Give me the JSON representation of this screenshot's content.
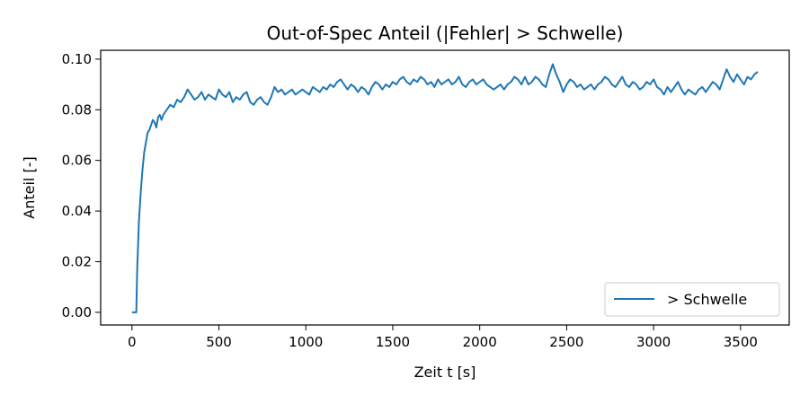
{
  "chart_data": {
    "type": "line",
    "title": "Out-of-Spec Anteil (|Fehler| > Schwelle)",
    "xlabel": "Zeit t [s]",
    "ylabel": "Anteil [-]",
    "xlim": [
      -180,
      3780
    ],
    "ylim": [
      -0.005,
      0.1035
    ],
    "x_ticks": [
      0,
      500,
      1000,
      1500,
      2000,
      2500,
      3000,
      3500
    ],
    "x_tick_labels": [
      "0",
      "500",
      "1000",
      "1500",
      "2000",
      "2500",
      "3000",
      "3500"
    ],
    "y_ticks": [
      0.0,
      0.02,
      0.04,
      0.06,
      0.08,
      0.1
    ],
    "y_tick_labels": [
      "0.00",
      "0.02",
      "0.04",
      "0.06",
      "0.08",
      "0.10"
    ],
    "grid": false,
    "legend_position": "lower-right",
    "color": "#1f77b4",
    "series": [
      {
        "name": "> Schwelle",
        "color": "#1f77b4",
        "x": [
          0,
          10,
          20,
          25,
          30,
          40,
          50,
          60,
          70,
          80,
          90,
          100,
          110,
          120,
          130,
          140,
          150,
          160,
          170,
          180,
          190,
          200,
          220,
          240,
          260,
          280,
          300,
          320,
          340,
          360,
          380,
          400,
          420,
          440,
          460,
          480,
          500,
          520,
          540,
          560,
          580,
          600,
          620,
          640,
          660,
          680,
          700,
          720,
          740,
          760,
          780,
          800,
          820,
          840,
          860,
          880,
          900,
          920,
          940,
          960,
          980,
          1000,
          1020,
          1040,
          1060,
          1080,
          1100,
          1120,
          1140,
          1160,
          1180,
          1200,
          1220,
          1240,
          1260,
          1280,
          1300,
          1320,
          1340,
          1360,
          1380,
          1400,
          1420,
          1440,
          1460,
          1480,
          1500,
          1520,
          1540,
          1560,
          1580,
          1600,
          1620,
          1640,
          1660,
          1680,
          1700,
          1720,
          1740,
          1760,
          1780,
          1800,
          1820,
          1840,
          1860,
          1880,
          1900,
          1920,
          1940,
          1960,
          1980,
          2000,
          2020,
          2040,
          2060,
          2080,
          2100,
          2120,
          2140,
          2160,
          2180,
          2200,
          2220,
          2240,
          2260,
          2280,
          2300,
          2320,
          2340,
          2360,
          2380,
          2400,
          2420,
          2440,
          2460,
          2480,
          2500,
          2520,
          2540,
          2560,
          2580,
          2600,
          2620,
          2640,
          2660,
          2680,
          2700,
          2720,
          2740,
          2760,
          2780,
          2800,
          2820,
          2840,
          2860,
          2880,
          2900,
          2920,
          2940,
          2960,
          2980,
          3000,
          3020,
          3040,
          3060,
          3080,
          3100,
          3120,
          3140,
          3160,
          3180,
          3200,
          3220,
          3240,
          3260,
          3280,
          3300,
          3320,
          3340,
          3360,
          3380,
          3400,
          3420,
          3440,
          3460,
          3480,
          3500,
          3520,
          3540,
          3560,
          3580,
          3600
        ],
        "y": [
          0.0,
          0.0,
          0.0,
          0.0,
          0.017,
          0.036,
          0.047,
          0.056,
          0.063,
          0.067,
          0.071,
          0.072,
          0.074,
          0.076,
          0.075,
          0.073,
          0.077,
          0.078,
          0.076,
          0.078,
          0.079,
          0.08,
          0.082,
          0.081,
          0.084,
          0.083,
          0.085,
          0.088,
          0.086,
          0.084,
          0.085,
          0.087,
          0.084,
          0.086,
          0.085,
          0.084,
          0.088,
          0.086,
          0.085,
          0.087,
          0.083,
          0.085,
          0.084,
          0.086,
          0.087,
          0.083,
          0.082,
          0.084,
          0.085,
          0.083,
          0.082,
          0.085,
          0.089,
          0.087,
          0.088,
          0.086,
          0.087,
          0.088,
          0.086,
          0.087,
          0.088,
          0.087,
          0.086,
          0.089,
          0.088,
          0.087,
          0.089,
          0.088,
          0.09,
          0.089,
          0.091,
          0.092,
          0.09,
          0.088,
          0.09,
          0.089,
          0.087,
          0.089,
          0.088,
          0.086,
          0.089,
          0.091,
          0.09,
          0.088,
          0.09,
          0.089,
          0.091,
          0.09,
          0.092,
          0.093,
          0.091,
          0.09,
          0.092,
          0.091,
          0.093,
          0.092,
          0.09,
          0.091,
          0.089,
          0.092,
          0.09,
          0.091,
          0.092,
          0.09,
          0.091,
          0.093,
          0.09,
          0.089,
          0.091,
          0.092,
          0.09,
          0.091,
          0.092,
          0.09,
          0.089,
          0.088,
          0.089,
          0.09,
          0.088,
          0.09,
          0.091,
          0.093,
          0.092,
          0.09,
          0.093,
          0.09,
          0.091,
          0.093,
          0.092,
          0.09,
          0.089,
          0.094,
          0.098,
          0.094,
          0.091,
          0.087,
          0.09,
          0.092,
          0.091,
          0.089,
          0.09,
          0.088,
          0.089,
          0.09,
          0.088,
          0.09,
          0.091,
          0.093,
          0.092,
          0.09,
          0.089,
          0.091,
          0.093,
          0.09,
          0.089,
          0.091,
          0.09,
          0.088,
          0.089,
          0.091,
          0.09,
          0.092,
          0.089,
          0.088,
          0.086,
          0.089,
          0.087,
          0.089,
          0.091,
          0.088,
          0.086,
          0.088,
          0.087,
          0.086,
          0.088,
          0.089,
          0.087,
          0.089,
          0.091,
          0.09,
          0.088,
          0.092,
          0.096,
          0.093,
          0.091,
          0.094,
          0.092,
          0.09,
          0.093,
          0.092,
          0.094,
          0.095
        ]
      }
    ]
  }
}
